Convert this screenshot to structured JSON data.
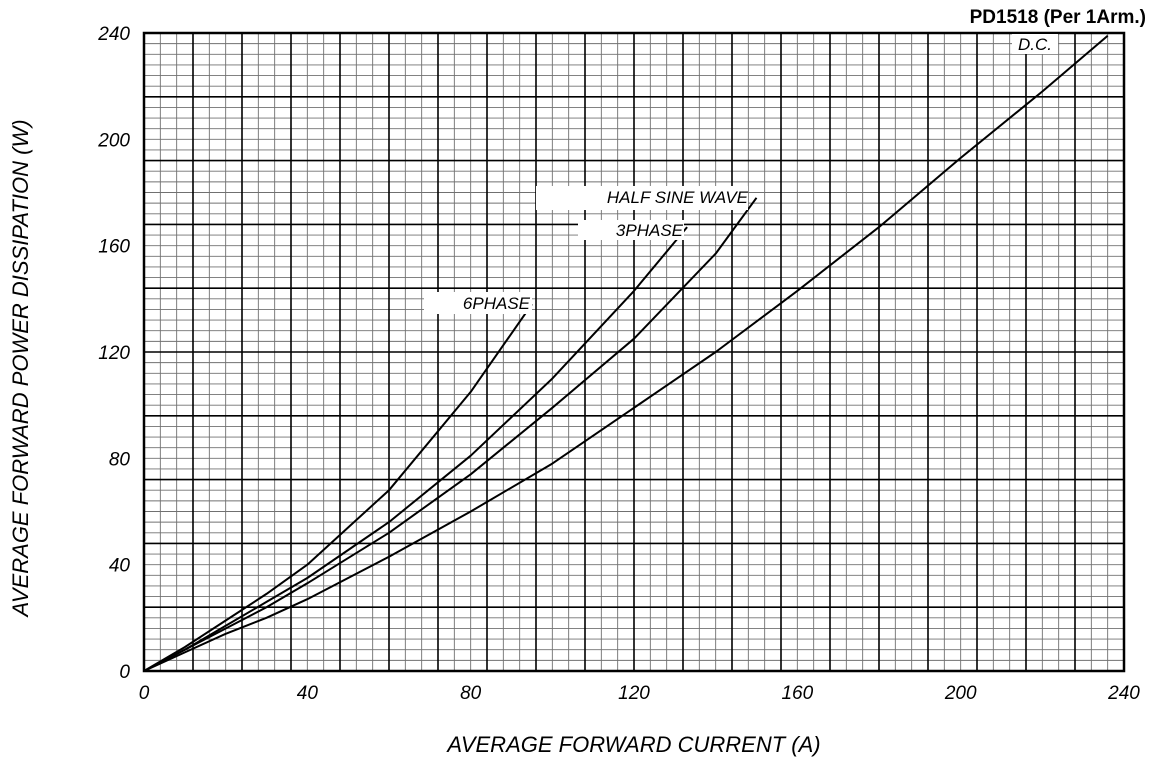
{
  "chart_data": {
    "type": "line",
    "title": "PD1518 (Per 1Arm.)",
    "xlabel": "AVERAGE FORWARD CURRENT (A)",
    "ylabel": "AVERAGE FORWARD POWER DISSIPATION (W)",
    "xlim": [
      0,
      240
    ],
    "ylim": [
      0,
      240
    ],
    "x_ticks": [
      "0",
      "40",
      "80",
      "120",
      "160",
      "200",
      "240"
    ],
    "y_ticks": [
      "0",
      "40",
      "80",
      "120",
      "160",
      "200",
      "240"
    ],
    "grid": true,
    "series": [
      {
        "name": "D.C.",
        "x": [
          0,
          10,
          20,
          30,
          40,
          60,
          80,
          100,
          120,
          140,
          160,
          180,
          200,
          220,
          236
        ],
        "y": [
          0,
          7,
          14,
          20,
          27,
          43,
          60,
          78,
          99,
          120,
          143,
          167,
          193,
          218,
          239
        ]
      },
      {
        "name": "HALF SINE WAVE",
        "x": [
          0,
          10,
          20,
          30,
          40,
          60,
          80,
          100,
          120,
          140,
          150
        ],
        "y": [
          0,
          8,
          16,
          24,
          33,
          52,
          74,
          99,
          125,
          157,
          178
        ]
      },
      {
        "name": "3PHASE",
        "x": [
          0,
          10,
          20,
          30,
          40,
          60,
          80,
          100,
          120,
          133
        ],
        "y": [
          0,
          8,
          17,
          26,
          35,
          56,
          81,
          110,
          143,
          167
        ]
      },
      {
        "name": "6PHASE",
        "x": [
          0,
          10,
          20,
          30,
          40,
          60,
          80,
          95
        ],
        "y": [
          0,
          9,
          19,
          29,
          40,
          68,
          105,
          138
        ]
      }
    ]
  }
}
